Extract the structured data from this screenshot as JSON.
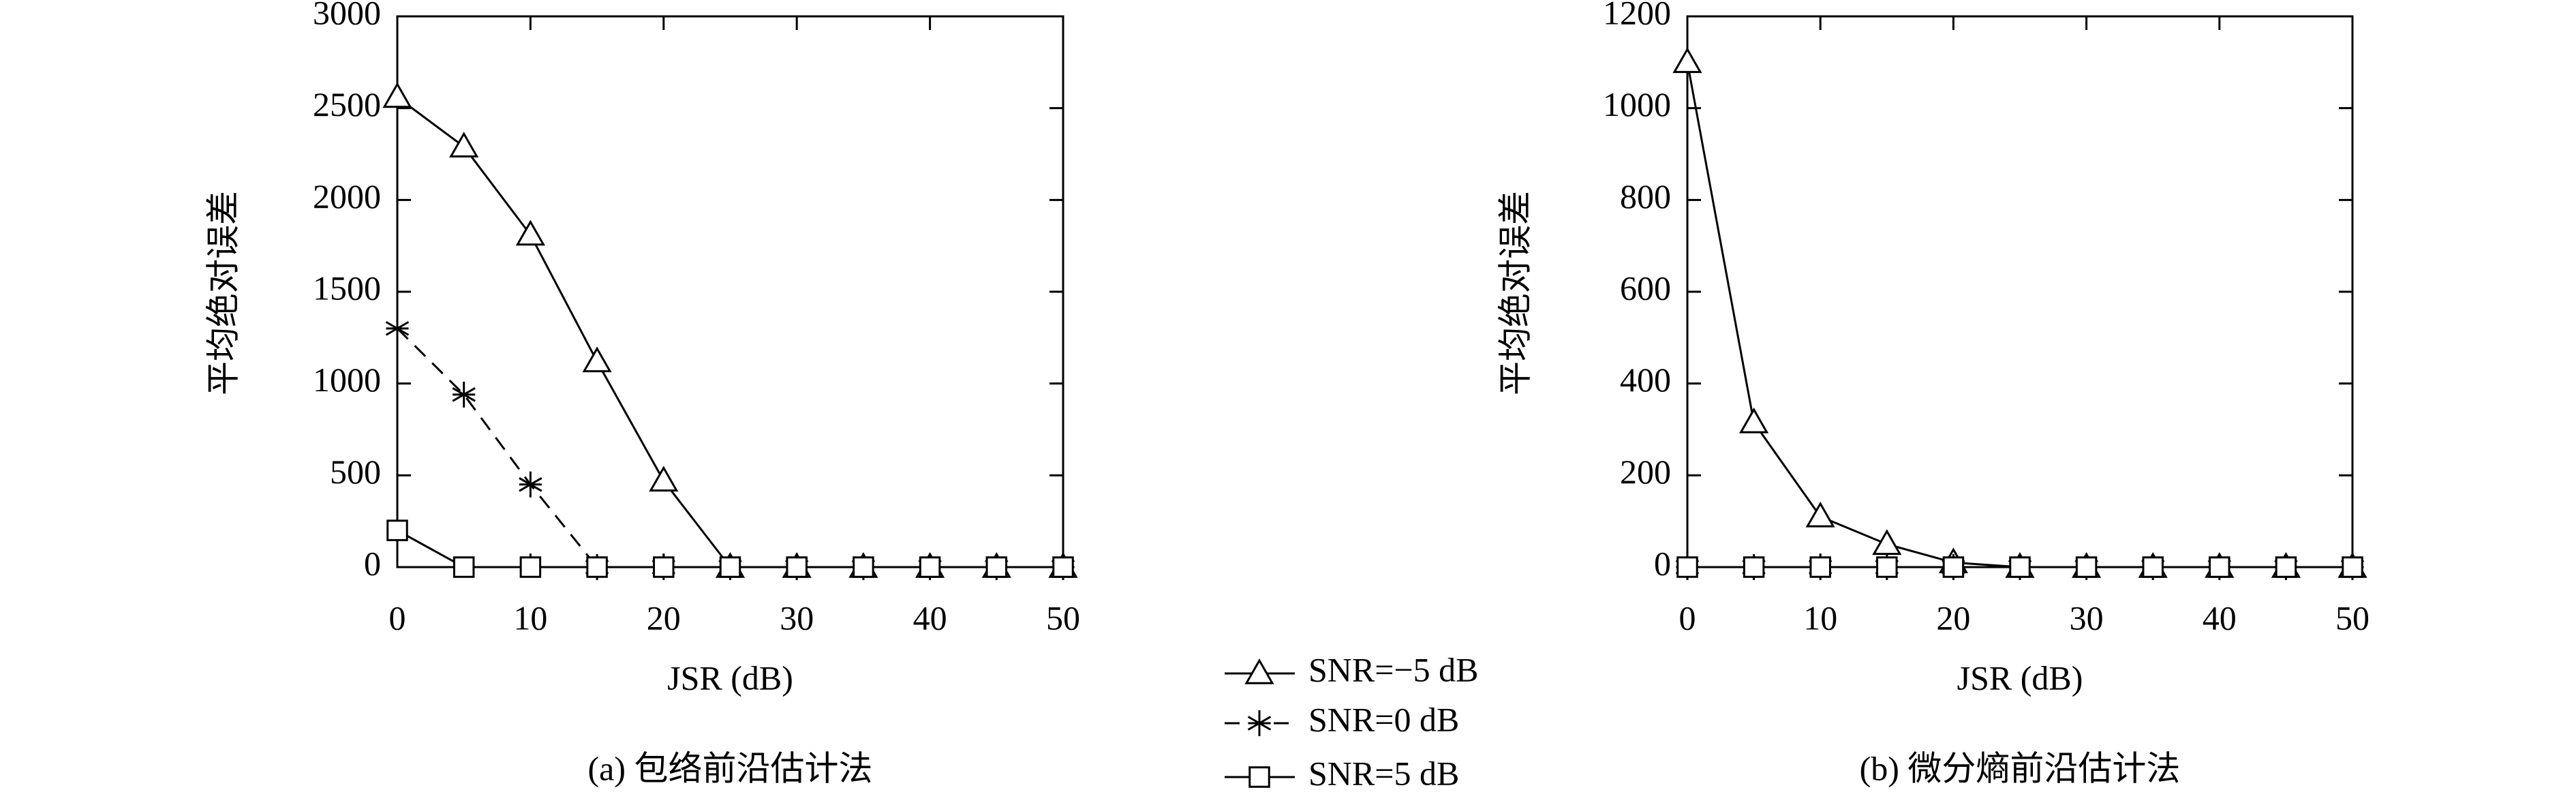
{
  "chart_data": [
    {
      "type": "line",
      "caption": "(a) 包络前沿估计法",
      "xlabel": "JSR (dB)",
      "ylabel": "平均绝对误差",
      "x": [
        0,
        5,
        10,
        15,
        20,
        25,
        30,
        35,
        40,
        45,
        50
      ],
      "xlim": [
        0,
        50
      ],
      "xticks": [
        0,
        10,
        20,
        30,
        40,
        50
      ],
      "ylim": [
        0,
        3000
      ],
      "yticks": [
        0,
        500,
        1000,
        1500,
        2000,
        2500,
        3000
      ],
      "legend": "below",
      "series": [
        {
          "name": "SNR=−5 dB",
          "color": "#000000",
          "marker": "triangle",
          "dash": false,
          "values": [
            2560,
            2290,
            1810,
            1120,
            470,
            0,
            0,
            0,
            0,
            0,
            0
          ]
        },
        {
          "name": "SNR=0 dB",
          "color": "#000000",
          "marker": "asterisk",
          "dash": true,
          "values": [
            1300,
            940,
            450,
            0,
            0,
            0,
            0,
            0,
            0,
            0,
            0
          ]
        },
        {
          "name": "SNR=5 dB",
          "color": "#000000",
          "marker": "square",
          "dash": false,
          "values": [
            200,
            0,
            0,
            0,
            0,
            0,
            0,
            0,
            0,
            0,
            0
          ]
        }
      ]
    },
    {
      "type": "line",
      "caption": "(b) 微分熵前沿估计法",
      "xlabel": "JSR (dB)",
      "ylabel": "平均绝对误差",
      "x": [
        0,
        5,
        10,
        15,
        20,
        25,
        30,
        35,
        40,
        45,
        50
      ],
      "xlim": [
        0,
        50
      ],
      "xticks": [
        0,
        10,
        20,
        30,
        40,
        50
      ],
      "ylim": [
        0,
        1200
      ],
      "yticks": [
        0,
        200,
        400,
        600,
        800,
        1000,
        1200
      ],
      "series": [
        {
          "color": "#000000",
          "marker": "triangle",
          "dash": false,
          "values": [
            1100,
            315,
            110,
            50,
            10,
            0,
            0,
            0,
            0,
            0,
            0
          ]
        },
        {
          "color": "#000000",
          "marker": "asterisk",
          "dash": true,
          "values": [
            0,
            0,
            0,
            0,
            0,
            0,
            0,
            0,
            0,
            0,
            0
          ]
        },
        {
          "color": "#000000",
          "marker": "square",
          "dash": false,
          "values": [
            0,
            0,
            0,
            0,
            0,
            0,
            0,
            0,
            0,
            0,
            0
          ]
        }
      ]
    }
  ]
}
